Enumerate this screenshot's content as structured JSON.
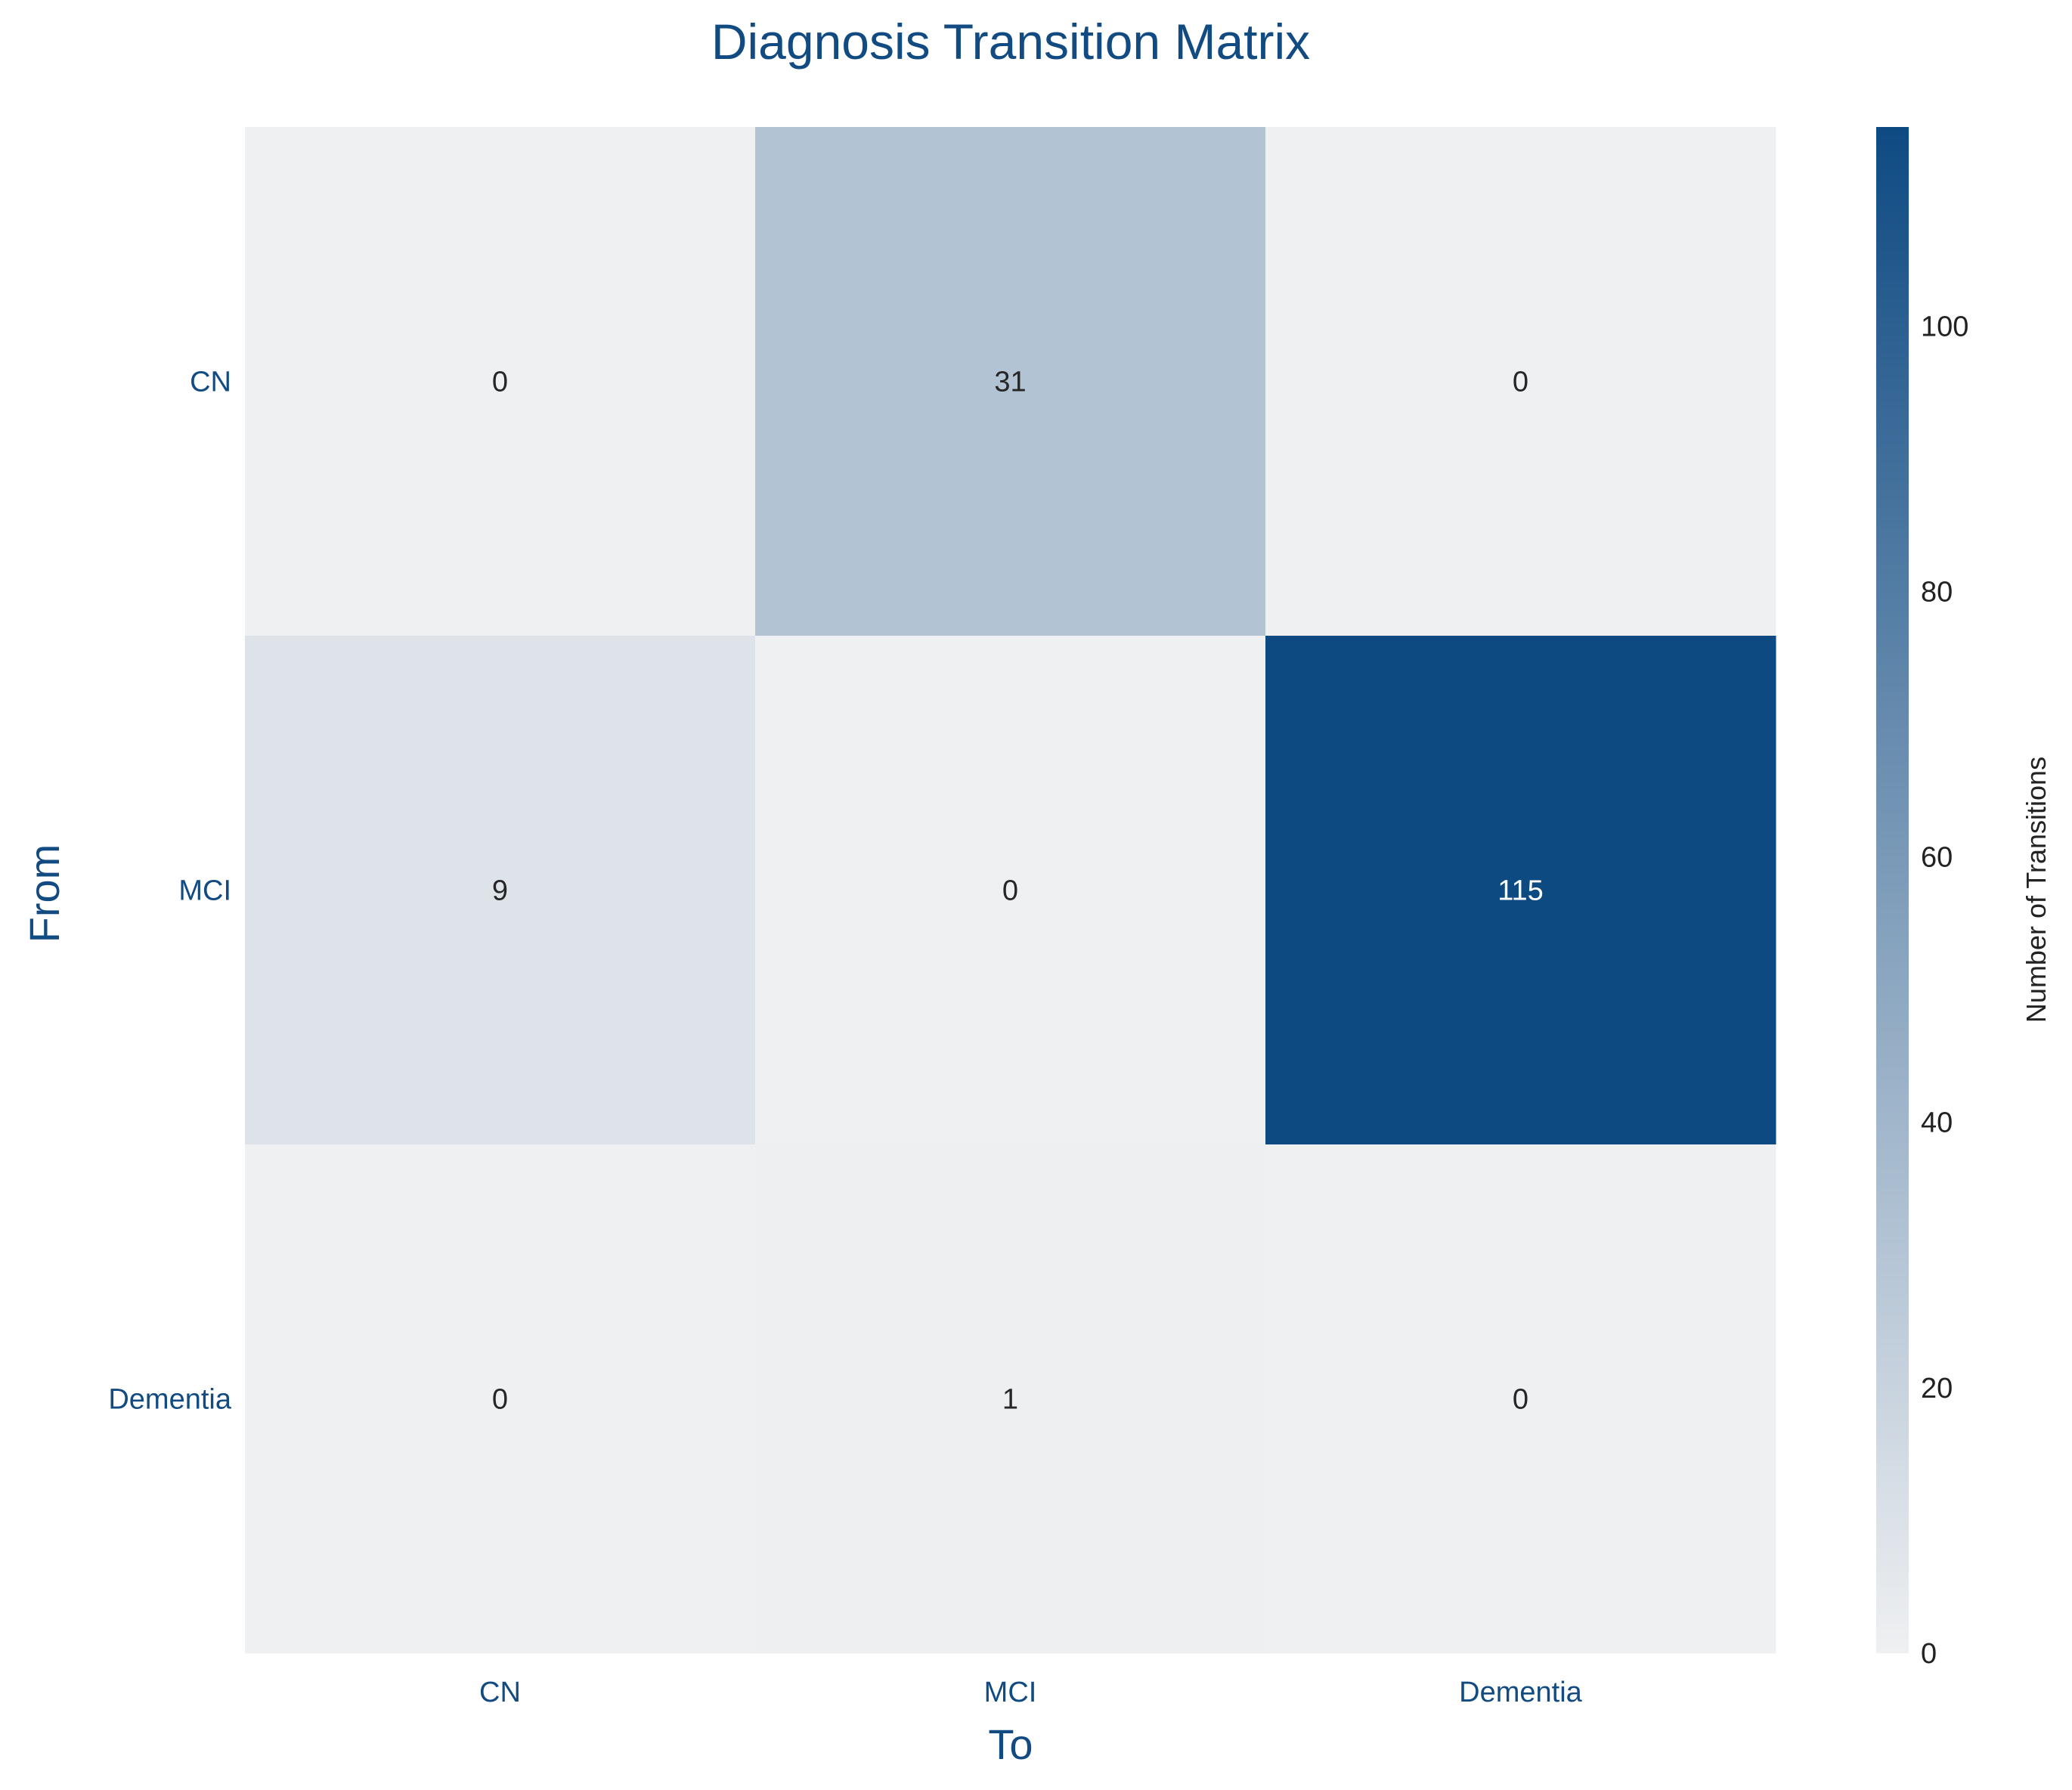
{
  "chart_data": {
    "type": "heatmap",
    "title": "Diagnosis Transition Matrix",
    "xlabel": "To",
    "ylabel": "From",
    "x_categories": [
      "CN",
      "MCI",
      "Dementia"
    ],
    "y_categories": [
      "CN",
      "MCI",
      "Dementia"
    ],
    "values": [
      [
        0,
        31,
        0
      ],
      [
        9,
        0,
        115
      ],
      [
        0,
        1,
        0
      ]
    ],
    "colorbar": {
      "label": "Number of Transitions",
      "range": [
        0,
        115
      ],
      "ticks": [
        "0",
        "20",
        "40",
        "60",
        "80",
        "100"
      ],
      "low_color": "#eff0f2",
      "high_color": "#0e4a82"
    },
    "grid": false
  }
}
